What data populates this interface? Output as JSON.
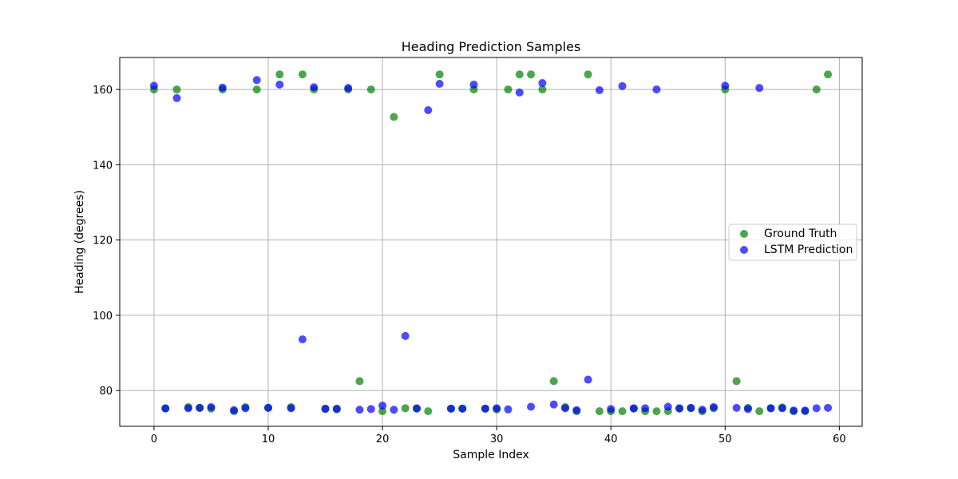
{
  "chart_data": {
    "type": "scatter",
    "title": "Heading Prediction Samples",
    "xlabel": "Sample Index",
    "ylabel": "Heading (degrees)",
    "xlim": [
      -3,
      62
    ],
    "ylim": [
      70.5,
      168.5
    ],
    "xticks": [
      0,
      10,
      20,
      30,
      40,
      50,
      60
    ],
    "yticks": [
      80,
      100,
      120,
      140,
      160
    ],
    "grid": true,
    "legend_position": "center-right",
    "x": [
      0,
      1,
      2,
      3,
      4,
      5,
      6,
      7,
      8,
      9,
      10,
      11,
      12,
      13,
      14,
      15,
      16,
      17,
      18,
      19,
      20,
      21,
      22,
      23,
      24,
      25,
      26,
      27,
      28,
      29,
      30,
      31,
      32,
      33,
      34,
      35,
      36,
      37,
      38,
      39,
      40,
      41,
      42,
      43,
      44,
      45,
      46,
      47,
      48,
      49,
      50,
      51,
      52,
      53,
      54,
      55,
      56,
      57,
      58,
      59
    ],
    "series": [
      {
        "name": "Ground Truth",
        "color": "#008000",
        "values": [
          160,
          75.2,
          160,
          75.6,
          75.4,
          75.2,
          160,
          74.5,
          75.6,
          160,
          75.4,
          164,
          75.6,
          164,
          160,
          75.1,
          75.0,
          160,
          82.5,
          160,
          74.5,
          152.7,
          75.3,
          75.3,
          74.5,
          164,
          75.2,
          75.2,
          160,
          75.2,
          75.0,
          160,
          164,
          164,
          160,
          82.5,
          75.6,
          74.5,
          164,
          74.5,
          74.5,
          74.5,
          75.2,
          74.5,
          74.5,
          74.5,
          75.2,
          75.3,
          74.5,
          75.3,
          160,
          82.5,
          75.4,
          74.5,
          75.3,
          75.5,
          74.5,
          74.5,
          160,
          164
        ]
      },
      {
        "name": "LSTM Prediction",
        "color": "#0000ff",
        "values": [
          161,
          75.3,
          157.7,
          75.3,
          75.4,
          75.6,
          160.5,
          74.8,
          75.3,
          162.5,
          75.4,
          161.3,
          75.3,
          93.6,
          160.6,
          75.2,
          75.2,
          160.4,
          74.9,
          75.1,
          76,
          74.9,
          94.5,
          75.2,
          154.5,
          161.5,
          75.2,
          75.2,
          161.3,
          75.2,
          75.3,
          75.0,
          159.2,
          75.7,
          161.7,
          76.3,
          75.3,
          74.8,
          82.9,
          159.8,
          75.1,
          160.9,
          75.3,
          75.3,
          160,
          75.7,
          75.3,
          75.4,
          74.9,
          75.6,
          161,
          75.4,
          75.1,
          160.4,
          75.3,
          75.3,
          74.7,
          74.7,
          75.3,
          75.4
        ]
      }
    ]
  }
}
